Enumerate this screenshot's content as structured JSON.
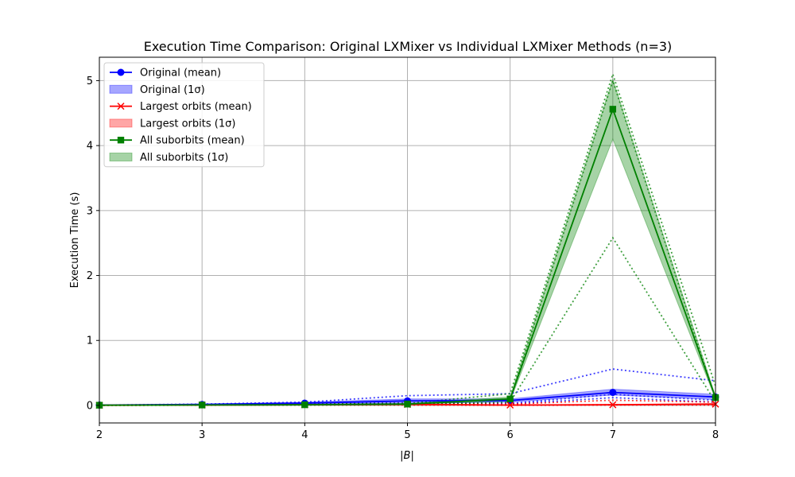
{
  "chart_data": {
    "type": "line",
    "title": "Execution Time Comparison: Original LXMixer vs Individual LXMixer Methods (n=3)",
    "xlabel": "|B|",
    "ylabel": "Execution Time (s)",
    "xlim": [
      2,
      8
    ],
    "ylim": [
      -0.27,
      5.36
    ],
    "xticks": [
      2,
      3,
      4,
      5,
      6,
      7,
      8
    ],
    "yticks": [
      0,
      1,
      2,
      3,
      4,
      5
    ],
    "grid": true,
    "legend_position": "upper-left",
    "x": [
      2,
      3,
      4,
      5,
      6,
      7,
      8
    ],
    "series": [
      {
        "name": "Original (mean)",
        "band_name": "Original (1σ)",
        "color": "#0000ff",
        "marker": "circle",
        "values": [
          0.005,
          0.015,
          0.035,
          0.07,
          0.075,
          0.2,
          0.13
        ],
        "band_low": [
          0.003,
          0.01,
          0.02,
          0.035,
          0.05,
          0.16,
          0.09
        ],
        "band_high": [
          0.007,
          0.02,
          0.05,
          0.1,
          0.1,
          0.25,
          0.17
        ],
        "runs": [
          [
            0.005,
            0.02,
            0.05,
            0.15,
            0.18,
            0.56,
            0.38
          ],
          [
            0.004,
            0.012,
            0.03,
            0.04,
            0.03,
            0.17,
            0.08
          ],
          [
            0.003,
            0.01,
            0.02,
            0.02,
            0.02,
            0.12,
            0.05
          ]
        ]
      },
      {
        "name": "Largest orbits (mean)",
        "band_name": "Largest orbits (1σ)",
        "color": "#ff0000",
        "marker": "x",
        "values": [
          0.002,
          0.005,
          0.01,
          0.015,
          0.005,
          0.01,
          0.02
        ],
        "band_low": [
          0.001,
          0.003,
          0.006,
          0.008,
          0.002,
          0.005,
          0.01
        ],
        "band_high": [
          0.003,
          0.007,
          0.014,
          0.022,
          0.008,
          0.015,
          0.03
        ],
        "runs": [
          [
            0.003,
            0.008,
            0.02,
            0.03,
            0.02,
            0.08,
            0.05
          ],
          [
            0.002,
            0.005,
            0.01,
            0.01,
            0.005,
            0.01,
            0.01
          ],
          [
            0.001,
            0.003,
            0.005,
            0.005,
            0.002,
            0.005,
            0.005
          ]
        ]
      },
      {
        "name": "All suborbits (mean)",
        "band_name": "All suborbits (1σ)",
        "color": "#008000",
        "marker": "square",
        "values": [
          0.003,
          0.006,
          0.01,
          0.02,
          0.1,
          4.56,
          0.12
        ],
        "band_low": [
          0.002,
          0.004,
          0.006,
          0.012,
          0.07,
          4.1,
          0.1
        ],
        "band_high": [
          0.004,
          0.008,
          0.014,
          0.028,
          0.13,
          5.02,
          0.14
        ],
        "runs": [
          [
            0.004,
            0.01,
            0.02,
            0.03,
            0.18,
            5.1,
            0.3
          ],
          [
            0.003,
            0.006,
            0.01,
            0.02,
            0.1,
            5.0,
            0.1
          ],
          [
            0.002,
            0.004,
            0.005,
            0.01,
            0.05,
            2.58,
            0.05
          ]
        ]
      }
    ]
  }
}
